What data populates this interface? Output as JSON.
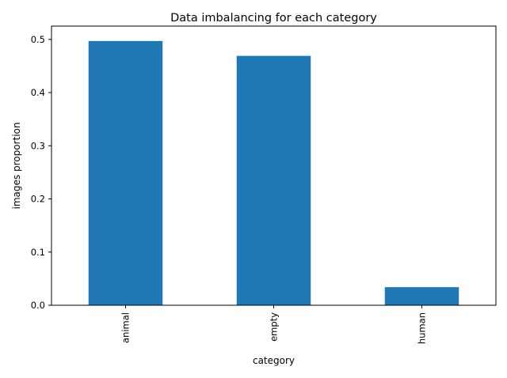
{
  "chart_data": {
    "type": "bar",
    "title": "Data imbalancing for each category",
    "xlabel": "category",
    "ylabel": "images proportion",
    "categories": [
      "animal",
      "empty",
      "human"
    ],
    "values": [
      0.497,
      0.469,
      0.034
    ],
    "ylim": [
      0,
      0.525
    ],
    "yticks": [
      0.0,
      0.1,
      0.2,
      0.3,
      0.4,
      0.5
    ],
    "ytick_labels": [
      "0.0",
      "0.1",
      "0.2",
      "0.3",
      "0.4",
      "0.5"
    ],
    "grid": false,
    "legend": "none",
    "bar_color": "#1f77b4"
  }
}
